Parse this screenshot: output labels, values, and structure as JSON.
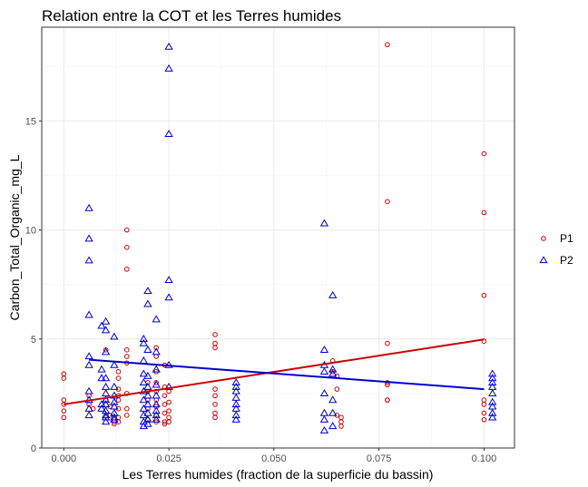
{
  "chart_data": {
    "type": "scatter",
    "title": "Relation entre la COT et les Terres humides",
    "xlabel": "Les Terres humides (fraction de la superficie du bassin)",
    "ylabel": "Carbon_Total_Organic_mg_L",
    "xlim": [
      -0.00525,
      0.10725
    ],
    "ylim": [
      0,
      19.3
    ],
    "x_ticks": [
      0.0,
      0.025,
      0.05,
      0.075,
      0.1
    ],
    "x_tick_labels": [
      "0.000",
      "0.025",
      "0.050",
      "0.075",
      "0.100"
    ],
    "y_ticks": [
      0,
      5,
      10,
      15
    ],
    "y_tick_labels": [
      "0",
      "5",
      "10",
      "15"
    ],
    "grid": true,
    "legend_position": "right",
    "series": [
      {
        "name": "P1",
        "color": "#CC0000",
        "marker": "circle",
        "points": [
          [
            0.0,
            3.4
          ],
          [
            0.0,
            3.2
          ],
          [
            0.0,
            2.2
          ],
          [
            0.0,
            2.0
          ],
          [
            0.0,
            1.7
          ],
          [
            0.0,
            1.4
          ],
          [
            0.006,
            2.4
          ],
          [
            0.006,
            2.0
          ],
          [
            0.007,
            1.8
          ],
          [
            0.01,
            4.5
          ],
          [
            0.01,
            2.2
          ],
          [
            0.011,
            1.9
          ],
          [
            0.011,
            1.5
          ],
          [
            0.012,
            1.2
          ],
          [
            0.012,
            1.1
          ],
          [
            0.013,
            3.5
          ],
          [
            0.013,
            3.2
          ],
          [
            0.013,
            2.7
          ],
          [
            0.013,
            2.4
          ],
          [
            0.013,
            2.2
          ],
          [
            0.013,
            1.8
          ],
          [
            0.013,
            1.4
          ],
          [
            0.013,
            1.2
          ],
          [
            0.015,
            10.0
          ],
          [
            0.015,
            9.2
          ],
          [
            0.015,
            8.2
          ],
          [
            0.015,
            4.5
          ],
          [
            0.015,
            4.2
          ],
          [
            0.015,
            3.9
          ],
          [
            0.015,
            2.5
          ],
          [
            0.015,
            1.8
          ],
          [
            0.015,
            1.5
          ],
          [
            0.02,
            3.0
          ],
          [
            0.02,
            2.6
          ],
          [
            0.02,
            2.2
          ],
          [
            0.02,
            1.8
          ],
          [
            0.02,
            1.3
          ],
          [
            0.022,
            4.6
          ],
          [
            0.022,
            4.2
          ],
          [
            0.022,
            3.5
          ],
          [
            0.022,
            3.0
          ],
          [
            0.022,
            2.6
          ],
          [
            0.022,
            2.2
          ],
          [
            0.022,
            1.9
          ],
          [
            0.022,
            1.5
          ],
          [
            0.022,
            1.2
          ],
          [
            0.024,
            3.8
          ],
          [
            0.024,
            2.8
          ],
          [
            0.024,
            2.4
          ],
          [
            0.024,
            2.0
          ],
          [
            0.024,
            1.6
          ],
          [
            0.024,
            1.2
          ],
          [
            0.024,
            1.1
          ],
          [
            0.025,
            2.6
          ],
          [
            0.025,
            2.1
          ],
          [
            0.025,
            1.7
          ],
          [
            0.025,
            1.4
          ],
          [
            0.025,
            1.2
          ],
          [
            0.036,
            5.2
          ],
          [
            0.036,
            4.8
          ],
          [
            0.036,
            4.6
          ],
          [
            0.036,
            2.7
          ],
          [
            0.036,
            2.4
          ],
          [
            0.036,
            2.0
          ],
          [
            0.036,
            1.6
          ],
          [
            0.036,
            1.4
          ],
          [
            0.064,
            4.0
          ],
          [
            0.064,
            3.5
          ],
          [
            0.065,
            3.3
          ],
          [
            0.065,
            2.7
          ],
          [
            0.065,
            1.5
          ],
          [
            0.066,
            1.4
          ],
          [
            0.066,
            1.2
          ],
          [
            0.066,
            1.0
          ],
          [
            0.077,
            18.5
          ],
          [
            0.077,
            11.3
          ],
          [
            0.077,
            4.8
          ],
          [
            0.077,
            3.0
          ],
          [
            0.077,
            2.9
          ],
          [
            0.077,
            2.2
          ],
          [
            0.077,
            2.2
          ],
          [
            0.1,
            13.5
          ],
          [
            0.1,
            10.8
          ],
          [
            0.1,
            7.0
          ],
          [
            0.1,
            4.9
          ],
          [
            0.1,
            2.2
          ],
          [
            0.1,
            2.0
          ],
          [
            0.1,
            1.6
          ],
          [
            0.1,
            1.3
          ]
        ]
      },
      {
        "name": "P2",
        "color": "#0000CC",
        "marker": "triangle",
        "points": [
          [
            0.006,
            11.0
          ],
          [
            0.006,
            9.6
          ],
          [
            0.006,
            8.6
          ],
          [
            0.006,
            6.1
          ],
          [
            0.006,
            4.2
          ],
          [
            0.006,
            3.8
          ],
          [
            0.006,
            2.6
          ],
          [
            0.006,
            2.2
          ],
          [
            0.006,
            1.8
          ],
          [
            0.006,
            1.5
          ],
          [
            0.009,
            5.6
          ],
          [
            0.009,
            3.6
          ],
          [
            0.009,
            3.2
          ],
          [
            0.009,
            2.0
          ],
          [
            0.009,
            1.8
          ],
          [
            0.01,
            5.8
          ],
          [
            0.01,
            5.4
          ],
          [
            0.01,
            4.4
          ],
          [
            0.01,
            3.2
          ],
          [
            0.01,
            2.8
          ],
          [
            0.01,
            2.5
          ],
          [
            0.01,
            2.2
          ],
          [
            0.01,
            2.0
          ],
          [
            0.01,
            1.7
          ],
          [
            0.01,
            1.5
          ],
          [
            0.01,
            1.4
          ],
          [
            0.01,
            1.2
          ],
          [
            0.012,
            5.1
          ],
          [
            0.012,
            3.8
          ],
          [
            0.012,
            2.8
          ],
          [
            0.012,
            2.4
          ],
          [
            0.012,
            2.1
          ],
          [
            0.012,
            1.9
          ],
          [
            0.012,
            1.6
          ],
          [
            0.012,
            1.4
          ],
          [
            0.012,
            1.3
          ],
          [
            0.019,
            5.0
          ],
          [
            0.019,
            4.8
          ],
          [
            0.019,
            4.0
          ],
          [
            0.019,
            3.4
          ],
          [
            0.019,
            3.0
          ],
          [
            0.019,
            2.6
          ],
          [
            0.019,
            2.2
          ],
          [
            0.019,
            1.8
          ],
          [
            0.019,
            1.5
          ],
          [
            0.019,
            1.2
          ],
          [
            0.019,
            1.0
          ],
          [
            0.02,
            7.2
          ],
          [
            0.02,
            6.6
          ],
          [
            0.02,
            4.5
          ],
          [
            0.02,
            3.3
          ],
          [
            0.02,
            2.8
          ],
          [
            0.02,
            2.4
          ],
          [
            0.02,
            2.0
          ],
          [
            0.02,
            1.6
          ],
          [
            0.02,
            1.3
          ],
          [
            0.02,
            1.1
          ],
          [
            0.022,
            5.9
          ],
          [
            0.022,
            4.4
          ],
          [
            0.022,
            3.6
          ],
          [
            0.022,
            2.9
          ],
          [
            0.022,
            2.4
          ],
          [
            0.022,
            2.0
          ],
          [
            0.022,
            1.7
          ],
          [
            0.022,
            1.5
          ],
          [
            0.022,
            1.3
          ],
          [
            0.025,
            18.4
          ],
          [
            0.025,
            17.4
          ],
          [
            0.025,
            14.4
          ],
          [
            0.025,
            7.7
          ],
          [
            0.025,
            6.9
          ],
          [
            0.025,
            3.8
          ],
          [
            0.025,
            2.8
          ],
          [
            0.041,
            3.0
          ],
          [
            0.041,
            2.8
          ],
          [
            0.041,
            2.6
          ],
          [
            0.041,
            2.3
          ],
          [
            0.041,
            2.0
          ],
          [
            0.041,
            1.8
          ],
          [
            0.041,
            1.5
          ],
          [
            0.041,
            1.3
          ],
          [
            0.062,
            10.3
          ],
          [
            0.062,
            4.5
          ],
          [
            0.062,
            3.8
          ],
          [
            0.062,
            3.5
          ],
          [
            0.062,
            2.5
          ],
          [
            0.062,
            1.6
          ],
          [
            0.062,
            1.3
          ],
          [
            0.062,
            0.8
          ],
          [
            0.064,
            7.0
          ],
          [
            0.064,
            3.6
          ],
          [
            0.064,
            3.4
          ],
          [
            0.064,
            2.2
          ],
          [
            0.064,
            1.6
          ],
          [
            0.064,
            1.0
          ],
          [
            0.102,
            3.4
          ],
          [
            0.102,
            3.2
          ],
          [
            0.102,
            3.0
          ],
          [
            0.102,
            2.8
          ],
          [
            0.102,
            2.5
          ],
          [
            0.102,
            2.1
          ],
          [
            0.102,
            1.9
          ],
          [
            0.102,
            1.6
          ],
          [
            0.102,
            1.4
          ]
        ]
      }
    ],
    "trend_lines": [
      {
        "series": "P1",
        "x": [
          0.0,
          0.1
        ],
        "y": [
          2.0,
          4.98
        ]
      },
      {
        "series": "P2",
        "x": [
          0.006,
          0.1
        ],
        "y": [
          4.05,
          2.7
        ]
      }
    ]
  }
}
